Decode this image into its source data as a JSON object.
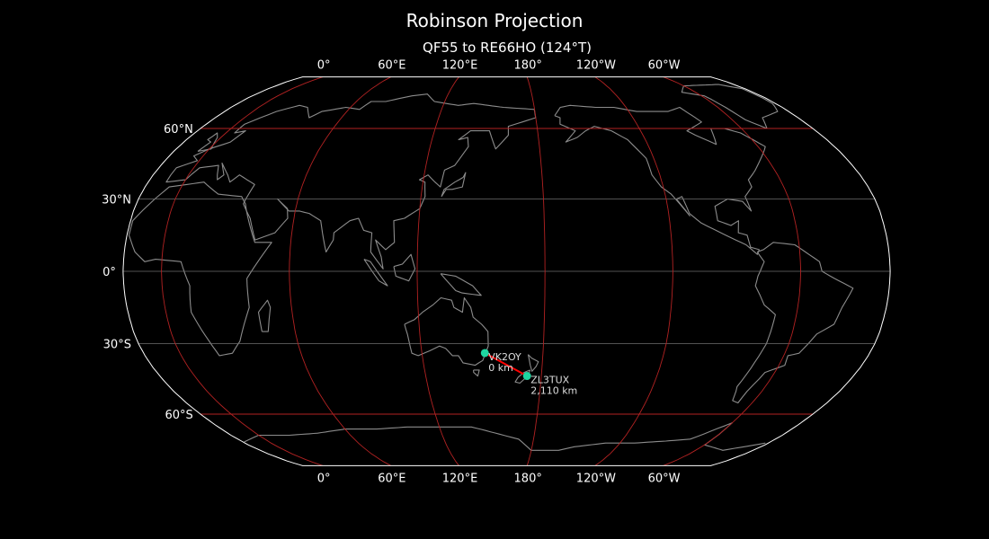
{
  "title": "Robinson Projection",
  "subtitle": "QF55 to RE66HO (124°T)",
  "map": {
    "projection": "robinson",
    "central_longitude": 162,
    "meridians": [
      {
        "lon": 0,
        "label": "0°"
      },
      {
        "lon": 60,
        "label": "60°E"
      },
      {
        "lon": 120,
        "label": "120°E"
      },
      {
        "lon": 180,
        "label": "180°"
      },
      {
        "lon": -120,
        "label": "120°W"
      },
      {
        "lon": -60,
        "label": "60°W"
      }
    ],
    "parallels": [
      {
        "lat": 60,
        "label": "60°N"
      },
      {
        "lat": 30,
        "label": "30°N"
      },
      {
        "lat": 0,
        "label": "0°"
      },
      {
        "lat": -30,
        "label": "30°S"
      },
      {
        "lat": -60,
        "label": "60°S"
      }
    ],
    "colors": {
      "background": "#000000",
      "outline": "#ffffff",
      "coastline": "#8c8c8c",
      "grid_major": "#b22222",
      "grid_minor": "#6e6e6e",
      "path": "#ff0000",
      "station": "#1ed6a0"
    },
    "path": {
      "from": "QF55",
      "to": "RE66HO",
      "bearing": "124°T"
    },
    "stations": [
      {
        "call": "VK2OY",
        "distance": "0 km",
        "lon": 151.2,
        "lat": -33.9
      },
      {
        "call": "ZL3TUX",
        "distance": "2,110 km",
        "lon": 172.6,
        "lat": -43.5
      }
    ]
  }
}
